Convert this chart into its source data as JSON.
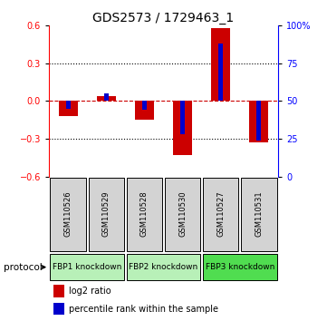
{
  "title": "GDS2573 / 1729463_1",
  "samples": [
    "GSM110526",
    "GSM110529",
    "GSM110528",
    "GSM110530",
    "GSM110527",
    "GSM110531"
  ],
  "log2_ratios": [
    -0.12,
    0.04,
    -0.15,
    -0.43,
    0.58,
    -0.33
  ],
  "percentile_ranks": [
    45,
    55,
    44,
    28,
    88,
    24
  ],
  "ylim_left": [
    -0.6,
    0.6
  ],
  "ylim_right": [
    0,
    100
  ],
  "yticks_left": [
    -0.6,
    -0.3,
    0,
    0.3,
    0.6
  ],
  "yticks_right": [
    0,
    25,
    50,
    75,
    100
  ],
  "ytick_labels_right": [
    "0",
    "25",
    "50",
    "75",
    "100%"
  ],
  "groups": [
    {
      "label": "FBP1 knockdown",
      "samples": [
        0,
        1
      ],
      "color": "#b8f0b8"
    },
    {
      "label": "FBP2 knockdown",
      "samples": [
        2,
        3
      ],
      "color": "#b8f0b8"
    },
    {
      "label": "FBP3 knockdown",
      "samples": [
        4,
        5
      ],
      "color": "#50dd50"
    }
  ],
  "bar_color_red": "#cc0000",
  "bar_color_blue": "#0000cc",
  "bar_width": 0.5,
  "pct_bar_width": 0.12,
  "bg_color": "#ffffff",
  "sample_box_color": "#d3d3d3",
  "zero_line_color": "#cc0000",
  "grid_color": "#000000",
  "legend_red_label": "log2 ratio",
  "legend_blue_label": "percentile rank within the sample",
  "protocol_label": "protocol",
  "title_fontsize": 10,
  "axis_fontsize": 7.5,
  "tick_fontsize": 7
}
